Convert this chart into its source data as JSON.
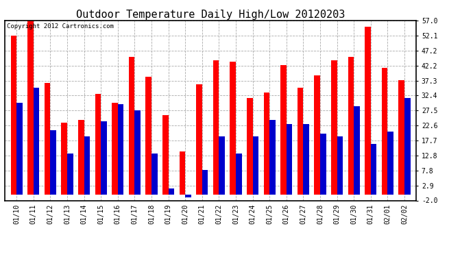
{
  "title": "Outdoor Temperature Daily High/Low 20120203",
  "copyright": "Copyright 2012 Cartronics.com",
  "dates": [
    "01/10",
    "01/11",
    "01/12",
    "01/13",
    "01/14",
    "01/15",
    "01/16",
    "01/17",
    "01/18",
    "01/19",
    "01/20",
    "01/21",
    "01/22",
    "01/23",
    "01/24",
    "01/25",
    "01/26",
    "01/27",
    "01/28",
    "01/29",
    "01/30",
    "01/31",
    "02/01",
    "02/02"
  ],
  "highs": [
    52.0,
    57.0,
    36.5,
    23.5,
    24.5,
    33.0,
    30.0,
    45.0,
    38.5,
    26.0,
    14.0,
    36.0,
    44.0,
    43.5,
    31.5,
    33.5,
    42.5,
    35.0,
    39.0,
    44.0,
    45.0,
    55.0,
    41.5,
    37.5
  ],
  "lows": [
    30.0,
    35.0,
    21.0,
    13.5,
    19.0,
    24.0,
    29.5,
    27.5,
    13.5,
    2.0,
    -1.0,
    8.0,
    19.0,
    13.5,
    19.0,
    24.5,
    23.0,
    23.0,
    20.0,
    19.0,
    29.0,
    16.5,
    20.5,
    31.5
  ],
  "high_color": "#ff0000",
  "low_color": "#0000cc",
  "bg_color": "#ffffff",
  "plot_bg": "#ffffff",
  "ylim_min": -2.0,
  "ylim_max": 57.0,
  "yticks": [
    -2.0,
    2.9,
    7.8,
    12.8,
    17.7,
    22.6,
    27.5,
    32.4,
    37.3,
    42.2,
    47.2,
    52.1,
    57.0
  ],
  "grid_color": "#aaaaaa",
  "bar_width": 0.35,
  "title_fontsize": 11,
  "tick_fontsize": 7,
  "copyright_fontsize": 6.5
}
